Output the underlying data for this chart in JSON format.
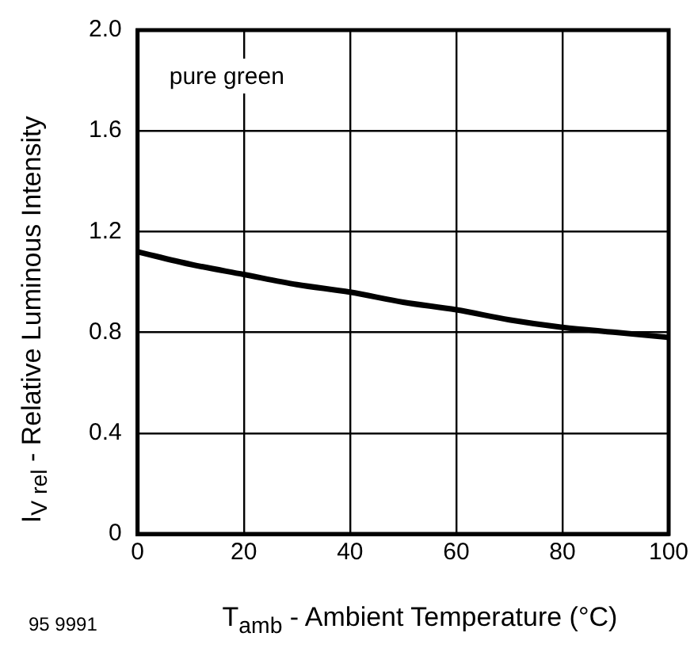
{
  "chart_data": {
    "type": "line",
    "xlabel": "T$_{amb}$ - Ambient Temperature (°C)",
    "ylabel": "I$_{V rel}$ - Relative Luminous Intensity",
    "annotations": [
      "pure green",
      "95 9991"
    ],
    "x": [
      0,
      10,
      20,
      30,
      40,
      50,
      60,
      70,
      80,
      90,
      100
    ],
    "series": [
      {
        "color": "#000000",
        "values": [
          1.12,
          1.07,
          1.03,
          0.99,
          0.96,
          0.92,
          0.89,
          0.85,
          0.82,
          0.8,
          0.78
        ]
      }
    ],
    "xlim": [
      0,
      100
    ],
    "xticks": [
      0,
      20,
      40,
      60,
      80,
      100
    ],
    "ylim": [
      0,
      2.0
    ],
    "yticks": [
      0,
      {
        "value": 0.4,
        "label": "0.4"
      },
      {
        "value": 0.8,
        "label": "0.8"
      },
      {
        "value": 1.2,
        "label": "1.2"
      },
      {
        "value": 1.6,
        "label": "1.6"
      },
      {
        "value": 2.0,
        "label": "2.0"
      }
    ],
    "grid": true,
    "legend": false,
    "marker": "none",
    "line_style": "solid"
  }
}
